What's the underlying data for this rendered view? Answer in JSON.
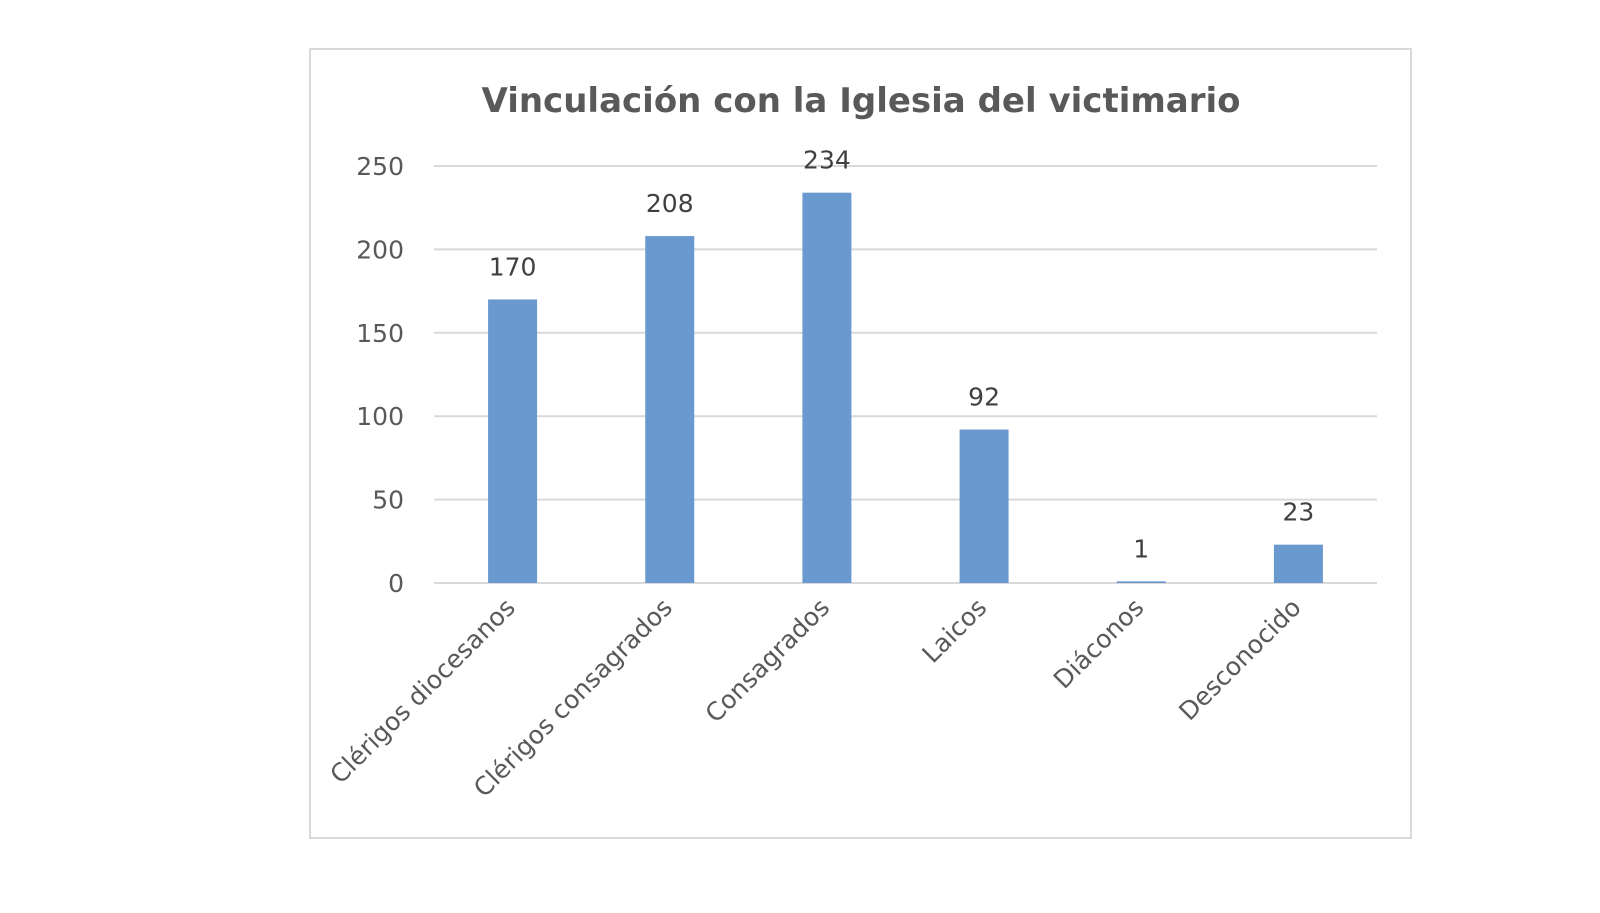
{
  "chart_data": {
    "type": "bar",
    "title": "Vinculación con la Iglesia del victimario",
    "categories": [
      "Clérigos diocesanos",
      "Clérigos consagrados",
      "Consagrados",
      "Laicos",
      "Diáconos",
      "Desconocido"
    ],
    "values": [
      170,
      208,
      234,
      92,
      1,
      23
    ],
    "ylim": [
      0,
      250
    ],
    "yticks": [
      0,
      50,
      100,
      150,
      200,
      250
    ],
    "grid": true,
    "legend": "none",
    "data_labels": true,
    "xlabel": "",
    "ylabel": "",
    "colors": {
      "bar": "#6a99d0",
      "grid": "#d9d9d9",
      "text": "#595959",
      "value_label": "#404040",
      "border": "#d9d9d9"
    }
  }
}
